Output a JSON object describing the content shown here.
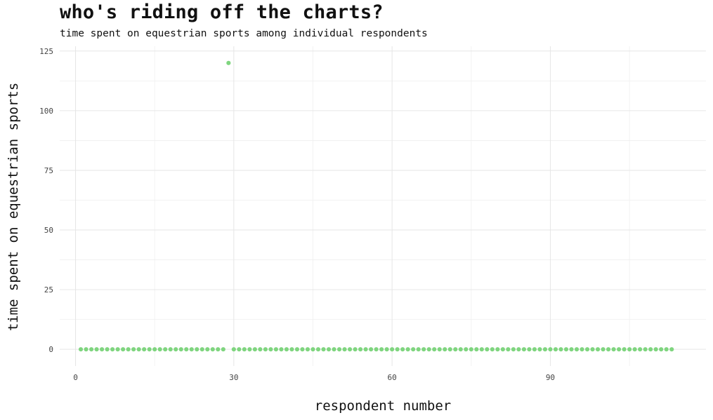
{
  "chart_data": {
    "type": "scatter",
    "title": "who's riding off the charts?",
    "subtitle": "time spent on equestrian sports among individual respondents",
    "xlabel": "respondent number",
    "ylabel": "time spent on equestrian sports",
    "xlim": [
      -3,
      119.5
    ],
    "ylim": [
      -7,
      127
    ],
    "xticks": [
      0,
      30,
      60,
      90
    ],
    "yticks": [
      0,
      25,
      50,
      75,
      100,
      125
    ],
    "grid": true,
    "point_color": "#7fd57f",
    "points": {
      "x": [
        1,
        2,
        3,
        4,
        5,
        6,
        7,
        8,
        9,
        10,
        11,
        12,
        13,
        14,
        15,
        16,
        17,
        18,
        19,
        20,
        21,
        22,
        23,
        24,
        25,
        26,
        27,
        28,
        29,
        30,
        31,
        32,
        33,
        34,
        35,
        36,
        37,
        38,
        39,
        40,
        41,
        42,
        43,
        44,
        45,
        46,
        47,
        48,
        49,
        50,
        51,
        52,
        53,
        54,
        55,
        56,
        57,
        58,
        59,
        60,
        61,
        62,
        63,
        64,
        65,
        66,
        67,
        68,
        69,
        70,
        71,
        72,
        73,
        74,
        75,
        76,
        77,
        78,
        79,
        80,
        81,
        82,
        83,
        84,
        85,
        86,
        87,
        88,
        89,
        90,
        91,
        92,
        93,
        94,
        95,
        96,
        97,
        98,
        99,
        100,
        101,
        102,
        103,
        104,
        105,
        106,
        107,
        108,
        109,
        110,
        111,
        112,
        113
      ],
      "y": [
        0,
        0,
        0,
        0,
        0,
        0,
        0,
        0,
        0,
        0,
        0,
        0,
        0,
        0,
        0,
        0,
        0,
        0,
        0,
        0,
        0,
        0,
        0,
        0,
        0,
        0,
        0,
        0,
        120,
        0,
        0,
        0,
        0,
        0,
        0,
        0,
        0,
        0,
        0,
        0,
        0,
        0,
        0,
        0,
        0,
        0,
        0,
        0,
        0,
        0,
        0,
        0,
        0,
        0,
        0,
        0,
        0,
        0,
        0,
        0,
        0,
        0,
        0,
        0,
        0,
        0,
        0,
        0,
        0,
        0,
        0,
        0,
        0,
        0,
        0,
        0,
        0,
        0,
        0,
        0,
        0,
        0,
        0,
        0,
        0,
        0,
        0,
        0,
        0,
        0,
        0,
        0,
        0,
        0,
        0,
        0,
        0,
        0,
        0,
        0,
        0,
        0,
        0,
        0,
        0,
        0,
        0,
        0,
        0,
        0,
        0,
        0,
        0
      ]
    }
  }
}
